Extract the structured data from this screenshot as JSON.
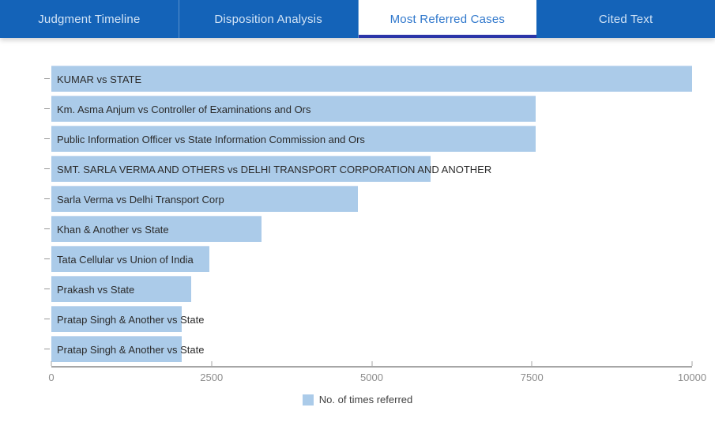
{
  "tabs": [
    {
      "label": "Judgment Timeline",
      "active": false
    },
    {
      "label": "Disposition Analysis",
      "active": false
    },
    {
      "label": "Most Referred Cases",
      "active": true
    },
    {
      "label": "Cited Text",
      "active": false
    }
  ],
  "colors": {
    "tabbar_bg": "#1463b8",
    "tab_text_inactive": "#d3e4f6",
    "tab_text_active": "#3078cc",
    "active_tab_underline": "#2b35a8",
    "bar_fill": "#abcbe9",
    "axis_line": "#a6a6a6",
    "tick_text": "#8c8c8c",
    "bar_label_text": "#2b2b2b"
  },
  "chart_data": {
    "type": "bar",
    "orientation": "horizontal",
    "title": "",
    "xlabel": "",
    "ylabel": "",
    "categories": [
      "KUMAR vs STATE",
      "Km. Asma Anjum vs Controller of Examinations and Ors",
      "Public Information Officer vs State Information Commission and Ors",
      "SMT. SARLA VERMA AND OTHERS vs DELHI TRANSPORT CORPORATION AND ANOTHER",
      "Sarla Verma vs Delhi Transport Corp",
      "Khan & Another vs State",
      "Tata Cellular vs Union of India",
      "Prakash vs State",
      "Pratap Singh & Another vs State",
      "Pratap Singh & Another vs State"
    ],
    "values": [
      10000,
      7560,
      7560,
      5920,
      4790,
      3280,
      2470,
      2180,
      2040,
      2040
    ],
    "series_name": "No. of times referred",
    "xlim": [
      0,
      10000
    ],
    "x_ticks": [
      0,
      2500,
      5000,
      7500,
      10000
    ],
    "grid": false,
    "legend": {
      "label": "No. of times referred",
      "position": "bottom-center"
    }
  }
}
